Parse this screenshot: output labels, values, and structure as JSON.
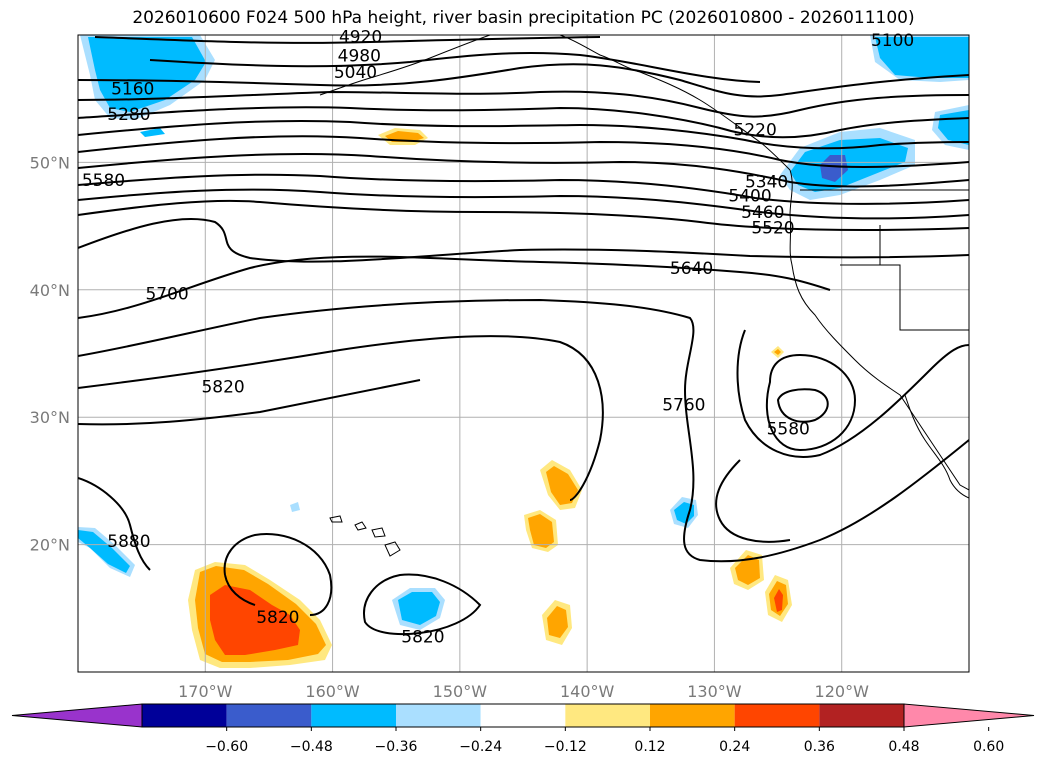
{
  "title": "2026010600 F024 500 hPa height, river basin precipitation PC (2026010800 - 2026011100)",
  "map": {
    "lon_range": [
      -180,
      -110
    ],
    "lat_range": [
      10,
      60
    ],
    "lon_ticks": [
      -170,
      -160,
      -150,
      -140,
      -130,
      -120
    ],
    "lon_tick_labels": [
      "170°W",
      "160°W",
      "150°W",
      "140°W",
      "130°W",
      "120°W"
    ],
    "lat_ticks": [
      20,
      30,
      40,
      50
    ],
    "lat_tick_labels": [
      "20°N",
      "30°N",
      "40°N",
      "50°N"
    ],
    "grid": true
  },
  "contour_labels": [
    {
      "text": "4920",
      "lon": -157.8,
      "lat": 59.9
    },
    {
      "text": "4980",
      "lon": -157.9,
      "lat": 58.4
    },
    {
      "text": "5040",
      "lon": -158.2,
      "lat": 57.1
    },
    {
      "text": "5100",
      "lon": -116.0,
      "lat": 59.6
    },
    {
      "text": "5160",
      "lon": -175.7,
      "lat": 55.8
    },
    {
      "text": "5220",
      "lon": -126.8,
      "lat": 52.6
    },
    {
      "text": "5280",
      "lon": -176.0,
      "lat": 53.8
    },
    {
      "text": "5340",
      "lon": -125.9,
      "lat": 48.5
    },
    {
      "text": "5400",
      "lon": -127.2,
      "lat": 47.4
    },
    {
      "text": "5460",
      "lon": -126.2,
      "lat": 46.1
    },
    {
      "text": "5520",
      "lon": -125.4,
      "lat": 44.9
    },
    {
      "text": "5580",
      "lon": -178.0,
      "lat": 48.6
    },
    {
      "text": "5580",
      "lon": -124.2,
      "lat": 29.1
    },
    {
      "text": "5640",
      "lon": -131.8,
      "lat": 41.7
    },
    {
      "text": "5700",
      "lon": -173.0,
      "lat": 39.7
    },
    {
      "text": "5760",
      "lon": -132.4,
      "lat": 31.0
    },
    {
      "text": "5820",
      "lon": -168.6,
      "lat": 32.4
    },
    {
      "text": "5820",
      "lon": -164.3,
      "lat": 14.3
    },
    {
      "text": "5820",
      "lon": -152.9,
      "lat": 12.8
    },
    {
      "text": "5880",
      "lon": -176.0,
      "lat": 20.3
    }
  ],
  "colorbar": {
    "ticks": [
      "−0.60",
      "−0.48",
      "−0.36",
      "−0.24",
      "−0.12",
      "0.12",
      "0.24",
      "0.36",
      "0.48",
      "0.60"
    ],
    "colors": [
      "#9933cc",
      "#000099",
      "#3a5ccc",
      "#00bbff",
      "#aadfff",
      "#ffffff",
      "#ffe880",
      "#ffa500",
      "#ff4500",
      "#b22222",
      "#ff88aa"
    ],
    "extend": "both"
  }
}
